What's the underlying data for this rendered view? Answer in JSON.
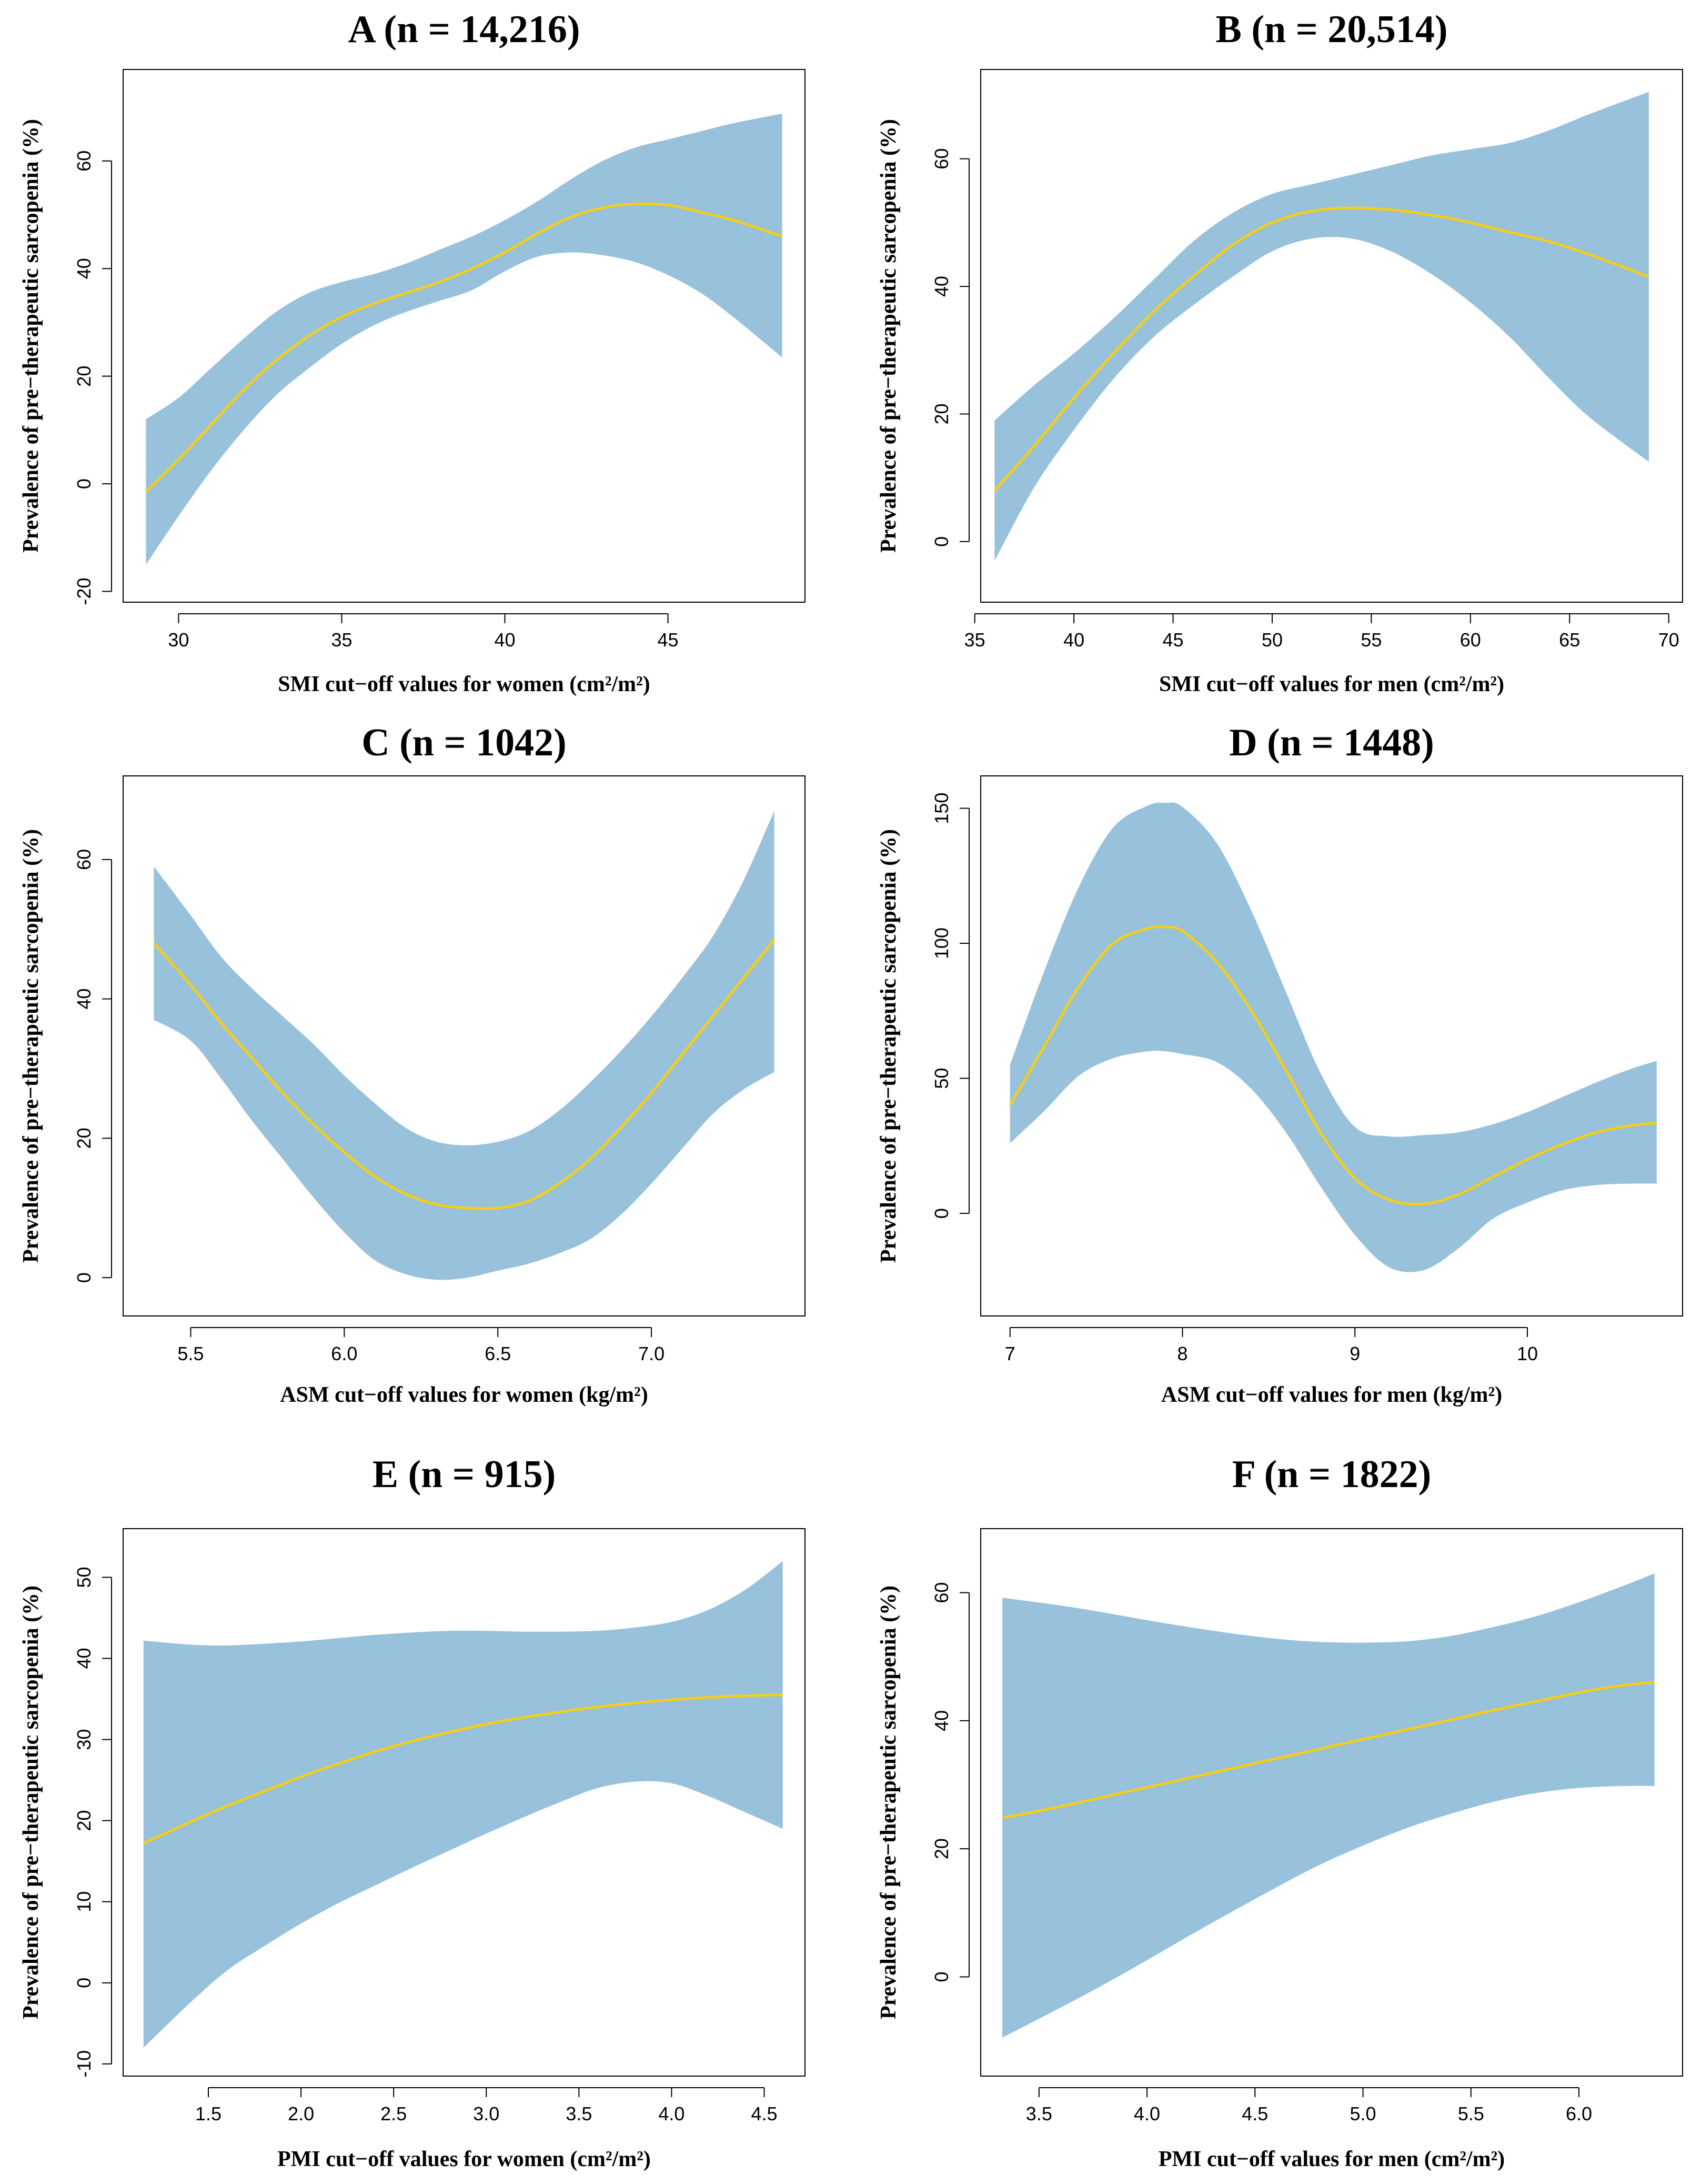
{
  "colors": {
    "band": "#98c1dc",
    "curve": "#f4cf16",
    "frame": "#000000"
  },
  "chart_data": [
    {
      "type": "area",
      "panel": "A",
      "title": "A (n = 14,216)",
      "xlabel": "SMI cut−off values for women (cm²/m²)",
      "ylabel": "Prevalence of pre−therapeutic sarcopenia (%)",
      "xlim": [
        28.3,
        49.2
      ],
      "ylim": [
        -22,
        77
      ],
      "xticks": [
        30,
        35,
        40,
        45
      ],
      "xtick_labels": [
        "30",
        "35",
        "40",
        "45"
      ],
      "yticks": [
        -20,
        0,
        20,
        40,
        60
      ],
      "ytick_labels": [
        "-20",
        "0",
        "20",
        "40",
        "60"
      ],
      "x": [
        29,
        30,
        31,
        32,
        33,
        34,
        35,
        36,
        37,
        38,
        39,
        40,
        41,
        42,
        43,
        44,
        45,
        46,
        47,
        48.5
      ],
      "fit": [
        -1.5,
        4.5,
        11,
        17.5,
        23,
        27.5,
        31,
        33.5,
        35.5,
        37.5,
        40,
        43,
        46.5,
        49.5,
        51.3,
        52,
        51.8,
        50.5,
        49,
        46
      ],
      "upper": [
        12,
        16,
        21.5,
        27,
        32,
        35.5,
        37.5,
        39,
        41,
        43.5,
        46,
        49,
        52.5,
        56.5,
        60,
        62.5,
        64,
        65.5,
        67,
        68.8
      ],
      "lower": [
        -15,
        -6,
        2.5,
        10,
        16.5,
        21.5,
        26,
        29.5,
        32,
        34,
        36,
        39.5,
        42.2,
        43,
        42.5,
        41.2,
        38.8,
        35.5,
        31,
        23.5
      ]
    },
    {
      "type": "area",
      "panel": "B",
      "title": "B (n = 20,514)",
      "xlabel": "SMI cut−off values for men (cm²/m²)",
      "ylabel": "Prevalence of pre−therapeutic sarcopenia (%)",
      "xlim": [
        35.3,
        70.7
      ],
      "ylim": [
        -9.5,
        74
      ],
      "xticks": [
        35,
        40,
        45,
        50,
        55,
        60,
        65,
        70
      ],
      "xtick_labels": [
        "35",
        "40",
        "45",
        "50",
        "55",
        "60",
        "65",
        "70"
      ],
      "yticks": [
        0,
        20,
        40,
        60
      ],
      "ytick_labels": [
        "0",
        "20",
        "40",
        "60"
      ],
      "x": [
        36,
        38,
        40,
        42,
        44,
        46,
        48,
        50,
        52,
        54,
        56,
        58,
        60,
        62,
        64,
        66,
        69
      ],
      "fit": [
        8,
        15,
        22.5,
        29.5,
        36,
        41.5,
        46.5,
        50,
        51.8,
        52.3,
        52,
        51.2,
        50,
        48.5,
        47,
        45,
        41.5
      ],
      "upper": [
        19,
        24.5,
        29.5,
        35,
        41,
        47,
        51.5,
        54.5,
        56,
        57.5,
        59,
        60.5,
        61.5,
        62.5,
        64.5,
        67,
        70.5
      ],
      "lower": [
        -3,
        8.5,
        17.5,
        25.5,
        32,
        37,
        41.5,
        45.5,
        47.5,
        47.5,
        45.5,
        42,
        37.5,
        32,
        25.5,
        19.5,
        12.5
      ]
    },
    {
      "type": "area",
      "panel": "C",
      "title": "C (n = 1042)",
      "xlabel": "ASM cut−off values for women (kg/m²)",
      "ylabel": "Prevalence of pre−therapeutic sarcopenia (%)",
      "xlim": [
        5.28,
        7.5
      ],
      "ylim": [
        -5.5,
        72
      ],
      "xticks": [
        5.5,
        6.0,
        6.5,
        7.0
      ],
      "xtick_labels": [
        "5.5",
        "6.0",
        "6.5",
        "7.0"
      ],
      "yticks": [
        0,
        20,
        40,
        60
      ],
      "ytick_labels": [
        "0",
        "20",
        "40",
        "60"
      ],
      "x": [
        5.38,
        5.5,
        5.6,
        5.7,
        5.8,
        5.9,
        6.0,
        6.1,
        6.2,
        6.3,
        6.4,
        6.5,
        6.6,
        6.7,
        6.8,
        6.9,
        7.0,
        7.1,
        7.2,
        7.3,
        7.4
      ],
      "fit": [
        48,
        42,
        36.5,
        31.5,
        26.5,
        22,
        18,
        14.5,
        12,
        10.5,
        10,
        10,
        11,
        13.5,
        17,
        21.5,
        26.5,
        32,
        37.5,
        43,
        48.5
      ],
      "upper": [
        59,
        52,
        46,
        41.5,
        37.5,
        33.5,
        29,
        25,
        21.5,
        19.5,
        19,
        19.5,
        21,
        24,
        28,
        32.5,
        37.5,
        43,
        49,
        57,
        67
      ],
      "lower": [
        37,
        34,
        28.5,
        22.5,
        17,
        11.5,
        6.5,
        2.5,
        0.5,
        -0.3,
        0,
        1,
        2,
        3.5,
        5.5,
        9,
        13.5,
        18.5,
        23.5,
        27,
        29.5
      ]
    },
    {
      "type": "area",
      "panel": "D",
      "title": "D (n = 1448)",
      "xlabel": "ASM cut−off values for men (kg/m²)",
      "ylabel": "Prevalence of pre−therapeutic sarcopenia (%)",
      "xlim": [
        6.83,
        10.9
      ],
      "ylim": [
        -38,
        162
      ],
      "xticks": [
        7,
        8,
        9,
        10
      ],
      "xtick_labels": [
        "7",
        "8",
        "9",
        "10"
      ],
      "yticks": [
        0,
        50,
        100,
        150
      ],
      "ytick_labels": [
        "0",
        "50",
        "100",
        "150"
      ],
      "x": [
        7.0,
        7.2,
        7.4,
        7.6,
        7.8,
        7.9,
        8.0,
        8.2,
        8.4,
        8.6,
        8.8,
        9.0,
        9.2,
        9.4,
        9.6,
        9.8,
        10.0,
        10.2,
        10.4,
        10.6,
        10.75
      ],
      "fit": [
        40,
        62,
        84,
        100,
        105.5,
        106,
        104.5,
        93,
        75,
        53,
        30,
        13,
        5,
        3.5,
        7,
        13.5,
        20,
        25.5,
        30,
        32.5,
        33.5
      ],
      "upper": [
        55,
        90,
        121,
        143,
        151,
        152,
        150.5,
        137,
        112,
        82,
        52,
        32,
        28.5,
        29,
        30,
        33,
        37.5,
        43,
        48.5,
        53.5,
        56.5
      ],
      "lower": [
        26,
        38,
        51,
        57.5,
        60,
        60,
        59,
        56,
        46,
        30,
        10,
        -8,
        -20,
        -21,
        -13,
        -2,
        4,
        8.5,
        10.5,
        11,
        11
      ]
    },
    {
      "type": "area",
      "panel": "E",
      "title": "E (n = 915)",
      "xlabel": "PMI cut−off values for women (cm²/m²)",
      "ylabel": "Prevalence of pre−therapeutic sarcopenia (%)",
      "xlim": [
        1.04,
        4.72
      ],
      "ylim": [
        -11.5,
        56
      ],
      "xticks": [
        1.5,
        2.0,
        2.5,
        3.0,
        3.5,
        4.0,
        4.5
      ],
      "xtick_labels": [
        "1.5",
        "2.0",
        "2.5",
        "3.0",
        "3.5",
        "4.0",
        "4.5"
      ],
      "yticks": [
        -10,
        0,
        10,
        20,
        30,
        40,
        50
      ],
      "ytick_labels": [
        "-10",
        "0",
        "10",
        "20",
        "30",
        "40",
        "50"
      ],
      "x": [
        1.15,
        1.4,
        1.6,
        1.8,
        2.0,
        2.2,
        2.4,
        2.6,
        2.8,
        3.0,
        3.2,
        3.4,
        3.6,
        3.8,
        4.0,
        4.2,
        4.4,
        4.6
      ],
      "fit": [
        17.2,
        19.8,
        21.8,
        23.6,
        25.4,
        27,
        28.5,
        29.8,
        30.9,
        31.9,
        32.7,
        33.4,
        34,
        34.5,
        34.9,
        35.2,
        35.4,
        35.5
      ],
      "upper": [
        42.2,
        41.7,
        41.6,
        41.8,
        42.1,
        42.5,
        42.9,
        43.2,
        43.4,
        43.4,
        43.3,
        43.3,
        43.4,
        43.8,
        44.5,
        46,
        48.5,
        52
      ],
      "lower": [
        -8,
        -2.5,
        1.5,
        4.5,
        7.3,
        9.8,
        12,
        14.2,
        16.3,
        18.4,
        20.4,
        22.3,
        24,
        24.8,
        24.6,
        23,
        21,
        19
      ]
    },
    {
      "type": "area",
      "panel": "F",
      "title": "F (n = 1822)",
      "xlabel": "PMI cut−off values for men (cm²/m²)",
      "ylabel": "Prevalence of pre−therapeutic sarcopenia (%)",
      "xlim": [
        3.23,
        6.48
      ],
      "ylim": [
        -15.5,
        70
      ],
      "xticks": [
        3.5,
        4.0,
        4.5,
        5.0,
        5.5,
        6.0
      ],
      "xtick_labels": [
        "3.5",
        "4.0",
        "4.5",
        "5.0",
        "5.5",
        "6.0"
      ],
      "yticks": [
        0,
        20,
        40,
        60
      ],
      "ytick_labels": [
        "0",
        "20",
        "40",
        "60"
      ],
      "x": [
        3.33,
        3.6,
        3.8,
        4.0,
        4.2,
        4.4,
        4.6,
        4.8,
        5.0,
        5.2,
        5.4,
        5.6,
        5.8,
        6.0,
        6.2,
        6.35
      ],
      "fit": [
        24.8,
        26.6,
        28.1,
        29.6,
        31.1,
        32.6,
        34.1,
        35.6,
        37.1,
        38.6,
        40.1,
        41.6,
        43,
        44.4,
        45.5,
        46
      ],
      "upper": [
        59.2,
        58,
        56.9,
        55.7,
        54.6,
        53.6,
        52.8,
        52.3,
        52.2,
        52.4,
        53.2,
        54.6,
        56.3,
        58.5,
        61,
        63
      ],
      "lower": [
        -9.5,
        -4.8,
        -1.2,
        2.6,
        6.5,
        10.3,
        14,
        17.5,
        20.5,
        23.2,
        25.4,
        27.3,
        28.7,
        29.5,
        29.8,
        29.8
      ]
    }
  ]
}
